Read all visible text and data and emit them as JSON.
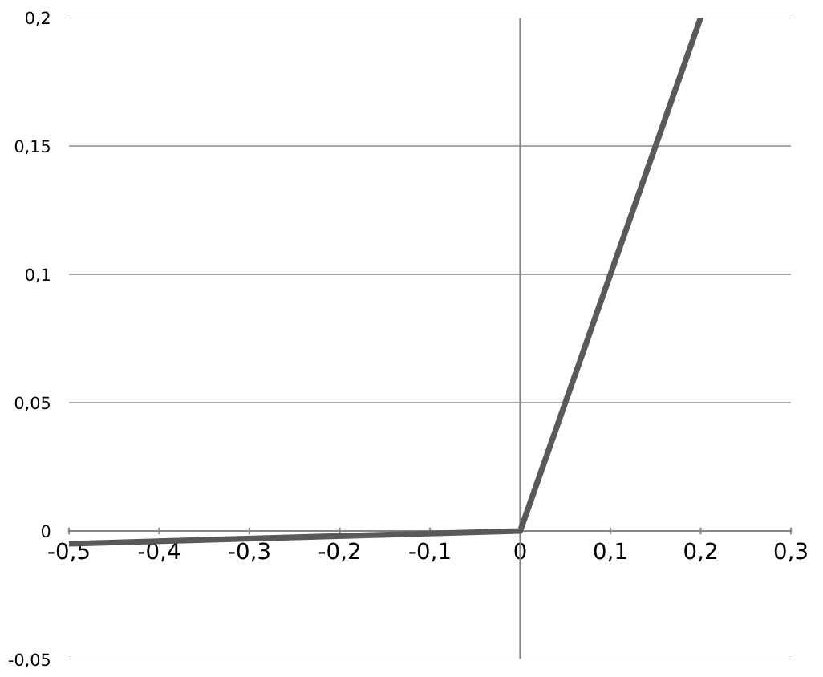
{
  "chart_data": {
    "type": "line",
    "x": [
      -0.5,
      0,
      0.2
    ],
    "series": [
      {
        "color": "#595959",
        "values": [
          -0.005,
          0,
          0.2
        ]
      }
    ],
    "xlim": [
      -0.5,
      0.3
    ],
    "ylim": [
      -0.05,
      0.2
    ],
    "xticks": [
      {
        "value": -0.5,
        "label": "-0,5"
      },
      {
        "value": -0.4,
        "label": "-0,4"
      },
      {
        "value": -0.3,
        "label": "-0,3"
      },
      {
        "value": -0.2,
        "label": "-0,2"
      },
      {
        "value": -0.1,
        "label": "-0,1"
      },
      0,
      {
        "value": 0.1,
        "label": "0,1"
      },
      {
        "value": 0.2,
        "label": "0,2"
      },
      {
        "value": 0.3,
        "label": "0,3"
      }
    ],
    "yticks": [
      {
        "value": -0.05,
        "label": "-0,05"
      },
      0,
      {
        "value": 0.05,
        "label": "0,05"
      },
      {
        "value": 0.1,
        "label": "0,1"
      },
      {
        "value": 0.15,
        "label": "0,15"
      },
      {
        "value": 0.2,
        "label": "0,2"
      }
    ],
    "grid": "y",
    "marker": "none",
    "line_style": "solid"
  }
}
